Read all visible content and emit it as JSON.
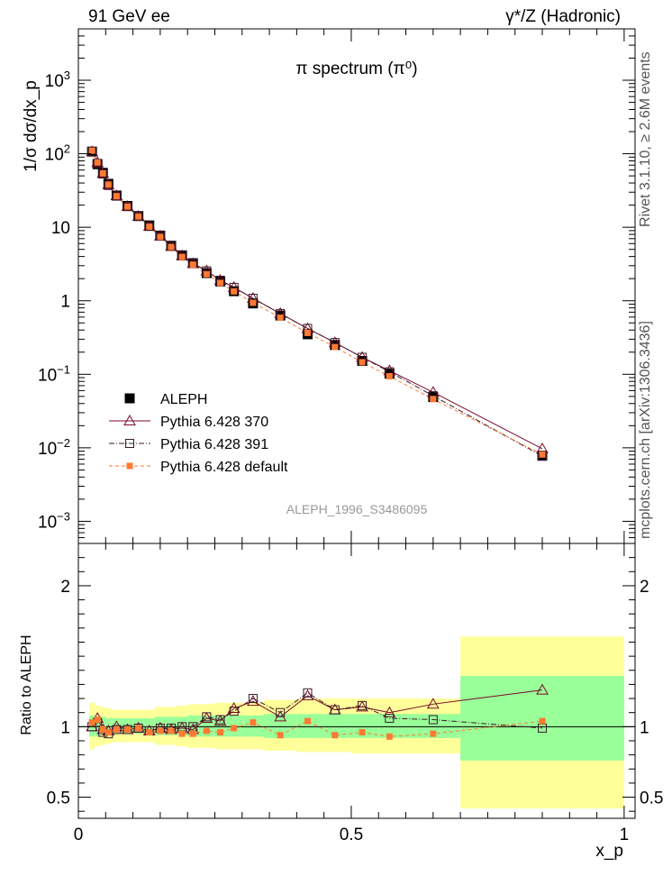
{
  "header": {
    "left": "91 GeV ee",
    "right": "γ*/Z (Hadronic)"
  },
  "side_labels": {
    "top": "Rivet 3.1.10, ≥ 2.6M events",
    "bottom": "mcplots.cern.ch [arXiv:1306.3436]"
  },
  "chart_data": {
    "type": "scatter",
    "title": "π spectrum (π⁰)",
    "analysis_label": "ALEPH_1996_S3486095",
    "xlabel": "x_p",
    "ylabel": "1/σ dσ/dx_p",
    "ratio_ylabel": "Ratio to ALEPH",
    "xlim": [
      0,
      1.02
    ],
    "ylim": [
      0.0005,
      5000
    ],
    "yscale": "log",
    "ratio_ylim": [
      0.35,
      2.3
    ],
    "x_ticks": [
      "0",
      "0.5",
      "1"
    ],
    "y_ticks": [
      "10^-3",
      "10^-2",
      "10^-1",
      "1",
      "10",
      "10^2",
      "10^3"
    ],
    "ratio_ticks": [
      "0.5",
      "1",
      "2"
    ],
    "legend_position": "lower-left",
    "colors": {
      "data": "#000000",
      "p370": "#7a0a2a",
      "p391": "#3a1a2a",
      "default": "#ff7a33",
      "band_inner": "#99ff99",
      "band_outer": "#ffff99"
    },
    "x": [
      0.025,
      0.035,
      0.045,
      0.055,
      0.07,
      0.09,
      0.11,
      0.13,
      0.15,
      0.17,
      0.19,
      0.21,
      0.235,
      0.26,
      0.285,
      0.32,
      0.37,
      0.42,
      0.47,
      0.52,
      0.57,
      0.65,
      0.85
    ],
    "series": [
      {
        "name": "ALEPH",
        "key": "data",
        "values": [
          107,
          72,
          55,
          39,
          27,
          19.5,
          14.2,
          10.6,
          7.7,
          5.6,
          4.15,
          3.25,
          2.38,
          1.83,
          1.35,
          0.92,
          0.63,
          0.35,
          0.25,
          0.152,
          0.102,
          0.049,
          0.0078
        ]
      },
      {
        "name": "Pythia 6.428 370",
        "key": "p370",
        "values": [
          107,
          76,
          54,
          38,
          27,
          19.2,
          14.1,
          10.3,
          7.6,
          5.5,
          4.1,
          3.2,
          2.55,
          1.9,
          1.52,
          1.08,
          0.67,
          0.42,
          0.27,
          0.17,
          0.112,
          0.057,
          0.0097
        ],
        "ratio": [
          1.0,
          1.06,
          0.98,
          0.97,
          1.0,
          0.98,
          0.99,
          0.97,
          0.99,
          0.98,
          0.99,
          0.98,
          1.06,
          1.04,
          1.13,
          1.18,
          1.07,
          1.22,
          1.12,
          1.14,
          1.1,
          1.16,
          1.26
        ]
      },
      {
        "name": "Pythia 6.428 391",
        "key": "p391",
        "values": [
          107,
          74,
          53,
          37,
          26.5,
          19.1,
          14.1,
          10.3,
          7.6,
          5.55,
          4.15,
          3.25,
          2.55,
          1.9,
          1.52,
          1.08,
          0.67,
          0.42,
          0.27,
          0.17,
          0.108,
          0.051,
          0.0077
        ],
        "ratio": [
          1.0,
          1.03,
          0.96,
          0.95,
          0.98,
          0.98,
          0.99,
          0.97,
          0.99,
          0.99,
          1.0,
          1.0,
          1.07,
          1.05,
          1.11,
          1.2,
          1.1,
          1.24,
          1.12,
          1.15,
          1.06,
          1.05,
          0.99
        ]
      },
      {
        "name": "Pythia 6.428 default",
        "key": "default",
        "values": [
          110,
          76,
          54,
          38,
          26.5,
          19.1,
          14.0,
          10.2,
          7.4,
          5.4,
          3.95,
          3.1,
          2.3,
          1.75,
          1.34,
          0.94,
          0.59,
          0.365,
          0.235,
          0.146,
          0.094,
          0.046,
          0.0081
        ],
        "ratio": [
          1.03,
          1.05,
          0.98,
          0.96,
          0.98,
          0.98,
          0.99,
          0.96,
          0.97,
          0.97,
          0.95,
          0.95,
          0.97,
          0.96,
          0.99,
          1.03,
          0.94,
          1.04,
          0.94,
          0.96,
          0.93,
          0.95,
          1.04
        ]
      }
    ],
    "ratio_bands": [
      {
        "x0": 0.02,
        "x1": 0.03,
        "inner": [
          0.93,
          1.08
        ],
        "outer": [
          0.84,
          1.17
        ]
      },
      {
        "x0": 0.03,
        "x1": 0.04,
        "inner": [
          0.93,
          1.07
        ],
        "outer": [
          0.86,
          1.15
        ]
      },
      {
        "x0": 0.04,
        "x1": 0.05,
        "inner": [
          0.94,
          1.07
        ],
        "outer": [
          0.87,
          1.14
        ]
      },
      {
        "x0": 0.05,
        "x1": 0.06,
        "inner": [
          0.94,
          1.06
        ],
        "outer": [
          0.88,
          1.13
        ]
      },
      {
        "x0": 0.06,
        "x1": 0.08,
        "inner": [
          0.95,
          1.06
        ],
        "outer": [
          0.89,
          1.12
        ]
      },
      {
        "x0": 0.08,
        "x1": 0.1,
        "inner": [
          0.95,
          1.06
        ],
        "outer": [
          0.89,
          1.12
        ]
      },
      {
        "x0": 0.1,
        "x1": 0.12,
        "inner": [
          0.95,
          1.06
        ],
        "outer": [
          0.89,
          1.12
        ]
      },
      {
        "x0": 0.12,
        "x1": 0.14,
        "inner": [
          0.95,
          1.06
        ],
        "outer": [
          0.89,
          1.12
        ]
      },
      {
        "x0": 0.14,
        "x1": 0.16,
        "inner": [
          0.94,
          1.07
        ],
        "outer": [
          0.87,
          1.14
        ]
      },
      {
        "x0": 0.16,
        "x1": 0.18,
        "inner": [
          0.94,
          1.07
        ],
        "outer": [
          0.87,
          1.14
        ]
      },
      {
        "x0": 0.18,
        "x1": 0.2,
        "inner": [
          0.94,
          1.07
        ],
        "outer": [
          0.86,
          1.15
        ]
      },
      {
        "x0": 0.2,
        "x1": 0.22,
        "inner": [
          0.93,
          1.08
        ],
        "outer": [
          0.85,
          1.16
        ]
      },
      {
        "x0": 0.22,
        "x1": 0.25,
        "inner": [
          0.93,
          1.08
        ],
        "outer": [
          0.85,
          1.16
        ]
      },
      {
        "x0": 0.25,
        "x1": 0.27,
        "inner": [
          0.93,
          1.08
        ],
        "outer": [
          0.84,
          1.17
        ]
      },
      {
        "x0": 0.27,
        "x1": 0.3,
        "inner": [
          0.93,
          1.08
        ],
        "outer": [
          0.84,
          1.17
        ]
      },
      {
        "x0": 0.3,
        "x1": 0.34,
        "inner": [
          0.93,
          1.08
        ],
        "outer": [
          0.84,
          1.17
        ]
      },
      {
        "x0": 0.34,
        "x1": 0.4,
        "inner": [
          0.92,
          1.09
        ],
        "outer": [
          0.83,
          1.19
        ]
      },
      {
        "x0": 0.4,
        "x1": 0.45,
        "inner": [
          0.92,
          1.09
        ],
        "outer": [
          0.82,
          1.2
        ]
      },
      {
        "x0": 0.45,
        "x1": 0.5,
        "inner": [
          0.92,
          1.09
        ],
        "outer": [
          0.82,
          1.2
        ]
      },
      {
        "x0": 0.5,
        "x1": 0.55,
        "inner": [
          0.92,
          1.09
        ],
        "outer": [
          0.81,
          1.2
        ]
      },
      {
        "x0": 0.55,
        "x1": 0.6,
        "inner": [
          0.92,
          1.09
        ],
        "outer": [
          0.81,
          1.2
        ]
      },
      {
        "x0": 0.6,
        "x1": 0.7,
        "inner": [
          0.92,
          1.09
        ],
        "outer": [
          0.81,
          1.2
        ]
      },
      {
        "x0": 0.7,
        "x1": 1.0,
        "inner": [
          0.76,
          1.36
        ],
        "outer": [
          0.42,
          1.64
        ]
      }
    ]
  }
}
